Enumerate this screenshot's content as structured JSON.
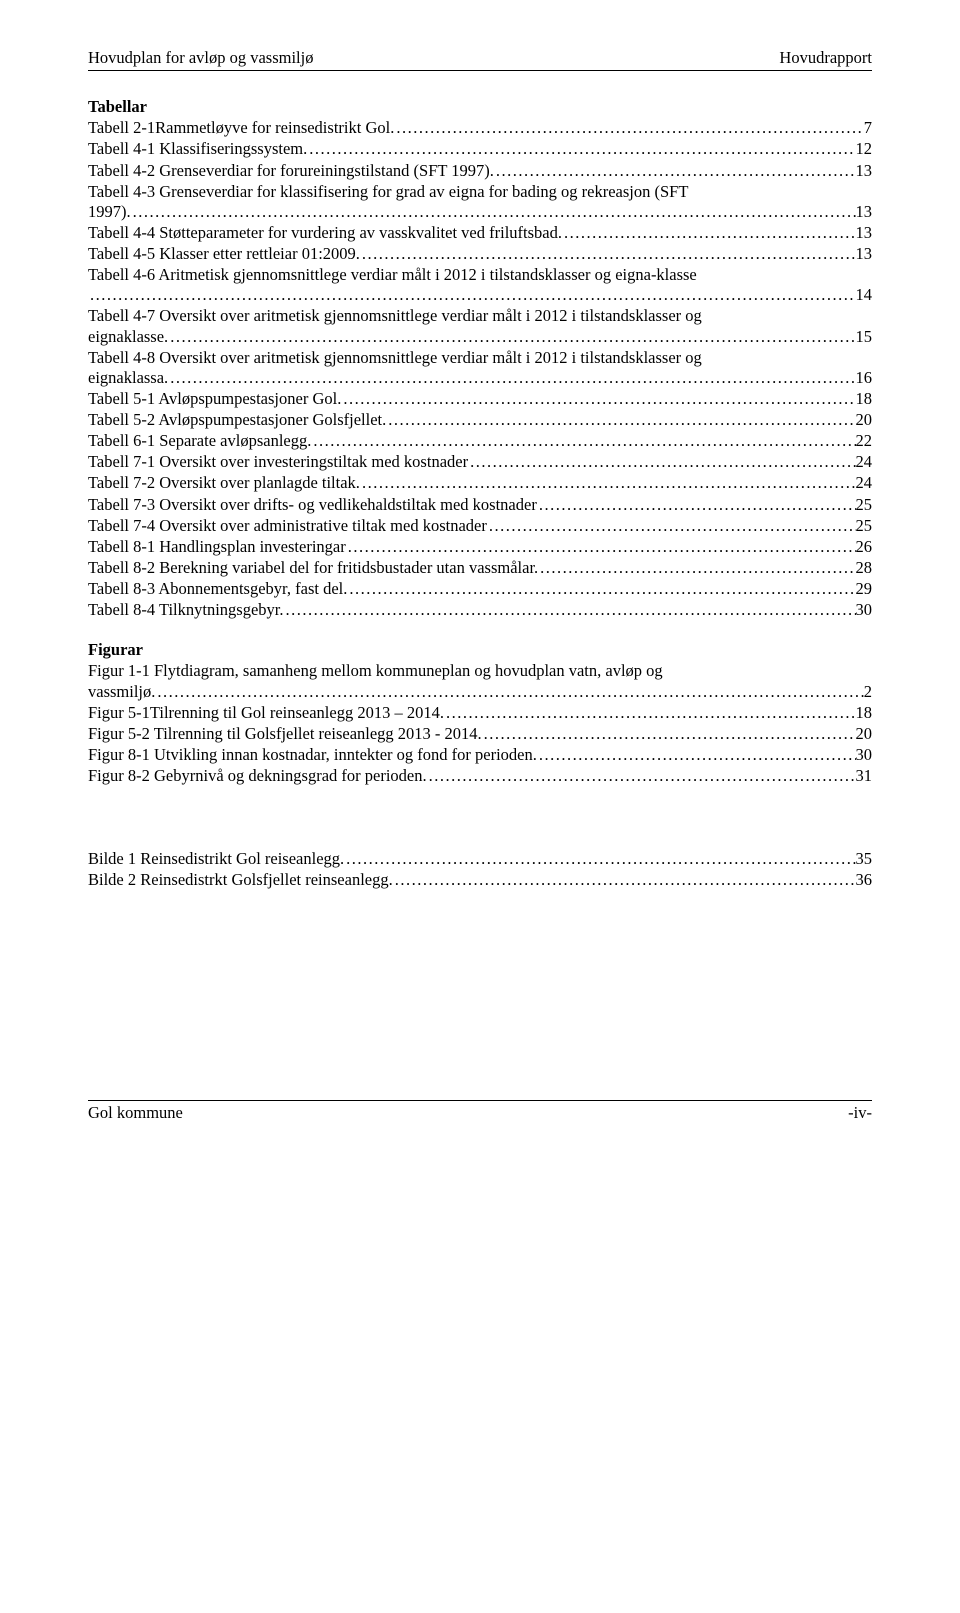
{
  "header": {
    "left": "Hovudplan for avløp og vassmiljø",
    "right": "Hovudrapport"
  },
  "footer": {
    "left": "Gol kommune",
    "right": "-iv-"
  },
  "leaderDots": "......................................................................................................................................................................................................",
  "sections": [
    {
      "heading": "Tabellar",
      "entries": [
        {
          "label": "Tabell 2-1Rammetløyve for reinsedistrikt Gol.",
          "page": "7"
        },
        {
          "label": "Tabell 4-1 Klassifiseringssystem.",
          "page": "12"
        },
        {
          "label": "Tabell 4-2 Grenseverdiar for forureiningstilstand (SFT 1997).",
          "page": "13"
        },
        {
          "label": "Tabell 4-3 Grenseverdiar for klassifisering for grad av eigna for bading og rekreasjon (SFT",
          "cont": "1997).",
          "page": "13"
        },
        {
          "label": "Tabell 4-4 Støtteparameter for vurdering av vasskvalitet ved friluftsbad.",
          "page": "13"
        },
        {
          "label": "Tabell 4-5 Klasser etter rettleiar 01:2009.",
          "page": "13"
        },
        {
          "label": "Tabell 4-6 Aritmetisk gjennomsnittlege verdiar målt i 2012 i tilstandsklasser og eigna-klasse",
          "page": "14",
          "contOnly": true
        },
        {
          "label": "Tabell 4-7 Oversikt over aritmetisk gjennomsnittlege verdiar målt i 2012 i tilstandsklasser og",
          "cont": "eignaklasse.",
          "page": "15"
        },
        {
          "label": "Tabell 4-8 Oversikt over aritmetisk gjennomsnittlege verdiar målt i 2012 i tilstandsklasser og",
          "cont": "eignaklassa.",
          "page": "16"
        },
        {
          "label": "Tabell 5-1 Avløpspumpestasjoner Gol.",
          "page": "18"
        },
        {
          "label": "Tabell 5-2 Avløpspumpestasjoner Golsfjellet.",
          "page": "20"
        },
        {
          "label": "Tabell 6-1 Separate avløpsanlegg.",
          "page": "22"
        },
        {
          "label": "Tabell 7-1 Oversikt over investeringstiltak med kostnader",
          "page": "24"
        },
        {
          "label": "Tabell 7-2 Oversikt over planlagde tiltak.",
          "page": "24"
        },
        {
          "label": "Tabell 7-3 Oversikt over drifts- og vedlikehaldstiltak med kostnader",
          "page": "25"
        },
        {
          "label": "Tabell 7-4 Oversikt over administrative tiltak med kostnader",
          "page": "25"
        },
        {
          "label": "Tabell 8-1 Handlingsplan investeringar",
          "page": "26"
        },
        {
          "label": "Tabell 8-2 Berekning variabel del for fritidsbustader utan vassmålar.",
          "page": "28"
        },
        {
          "label": "Tabell 8-3 Abonnementsgebyr, fast del.",
          "page": "29"
        },
        {
          "label": "Tabell 8-4 Tilknytningsgebyr.",
          "page": "30"
        }
      ]
    },
    {
      "heading": "Figurar",
      "entries": [
        {
          "label": "Figur 1-1 Flytdiagram, samanheng mellom kommuneplan og hovudplan vatn, avløp og",
          "cont": "vassmiljø.",
          "page": "2"
        },
        {
          "label": "Figur 5-1Tilrenning til Gol reinseanlegg 2013 – 2014.",
          "page": "18"
        },
        {
          "label": "Figur 5-2 Tilrenning til Golsfjellet reiseanlegg 2013 - 2014.",
          "page": "20"
        },
        {
          "label": "Figur 8-1 Utvikling innan kostnadar, inntekter og fond for perioden.",
          "page": "30"
        },
        {
          "label": "Figur 8-2 Gebyrnivå og dekningsgrad for perioden.",
          "page": "31"
        }
      ]
    },
    {
      "heading": "",
      "entries": [
        {
          "label": "Bilde 1 Reinsedistrikt Gol reiseanlegg.",
          "page": "35"
        },
        {
          "label": "Bilde 2 Reinsedistrkt Golsfjellet reinseanlegg.",
          "page": "36"
        }
      ]
    }
  ]
}
